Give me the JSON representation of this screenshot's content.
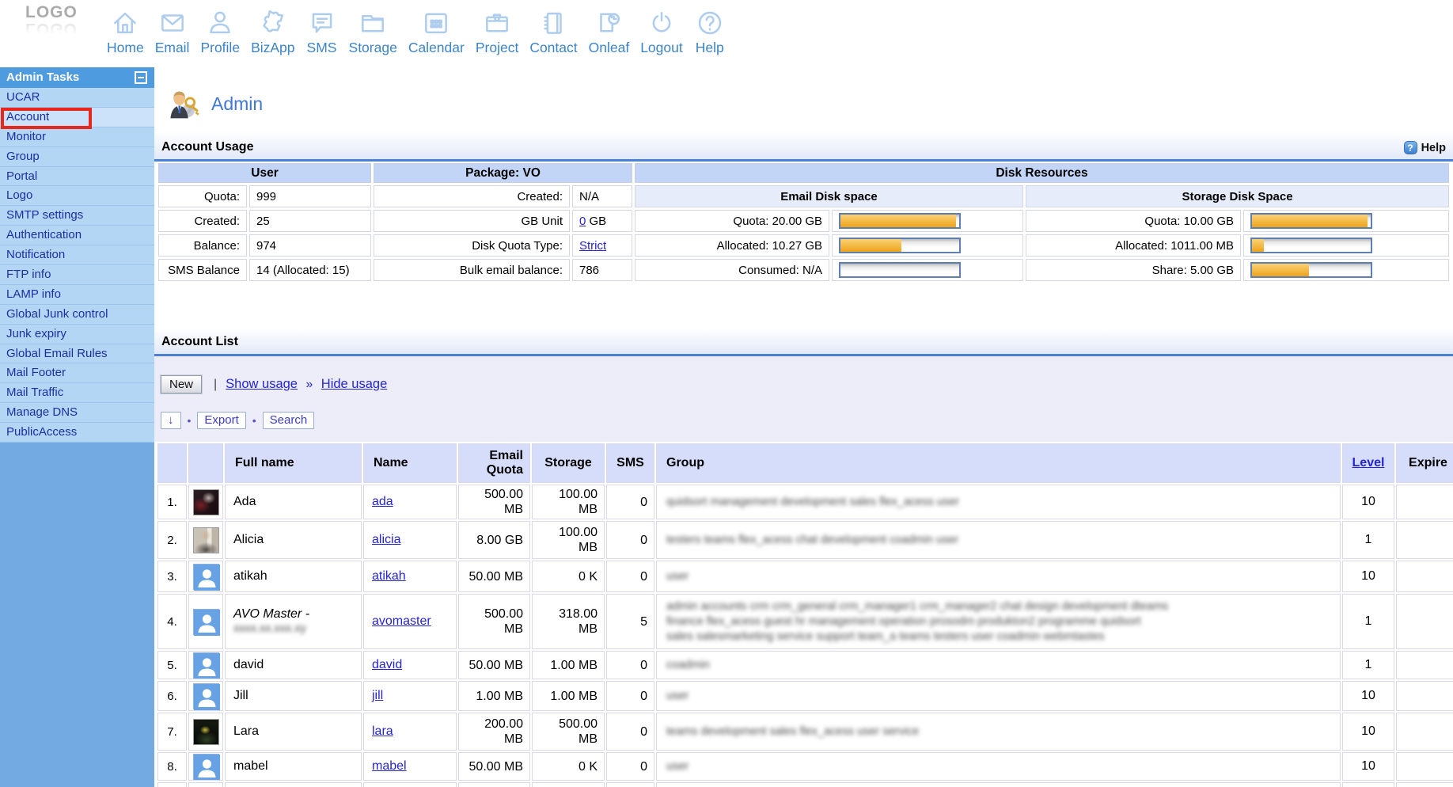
{
  "toolbar": {
    "logo": "LOGO",
    "items": [
      {
        "label": "Home",
        "icon": "home"
      },
      {
        "label": "Email",
        "icon": "email"
      },
      {
        "label": "Profile",
        "icon": "profile"
      },
      {
        "label": "BizApp",
        "icon": "bizapp"
      },
      {
        "label": "SMS",
        "icon": "sms"
      },
      {
        "label": "Storage",
        "icon": "storage"
      },
      {
        "label": "Calendar",
        "icon": "calendar"
      },
      {
        "label": "Project",
        "icon": "project"
      },
      {
        "label": "Contact",
        "icon": "contact"
      },
      {
        "label": "Onleaf",
        "icon": "onleaf"
      },
      {
        "label": "Logout",
        "icon": "logout"
      },
      {
        "label": "Help",
        "icon": "help"
      }
    ]
  },
  "sidebar": {
    "title": "Admin Tasks",
    "selected": "Account",
    "items": [
      "UCAR",
      "Account",
      "Monitor",
      "Group",
      "Portal",
      "Logo",
      "SMTP settings",
      "Authentication",
      "Notification",
      "FTP info",
      "LAMP info",
      "Global Junk control",
      "Junk expiry",
      "Global Email Rules",
      "Mail Footer",
      "Mail Traffic",
      "Manage DNS",
      "PublicAccess"
    ]
  },
  "page": {
    "title": "Admin"
  },
  "account_usage": {
    "section_title": "Account Usage",
    "help_label": "Help",
    "user": {
      "header": "User",
      "rows": [
        {
          "label": "Quota:",
          "value": "999"
        },
        {
          "label": "Created:",
          "value": "25"
        },
        {
          "label": "Balance:",
          "value": "974"
        },
        {
          "label": "SMS Balance",
          "value": "14 (Allocated: 15)"
        }
      ]
    },
    "package": {
      "header": "Package: VO",
      "rows": [
        {
          "label": "Created:",
          "value": "N/A"
        },
        {
          "label": "GB Unit",
          "value_link": "0",
          "value_after": " GB"
        },
        {
          "label": "Disk Quota Type:",
          "value_link": "Strict",
          "value_after": ""
        },
        {
          "label": "Bulk email balance:",
          "value": "786"
        }
      ]
    },
    "disk": {
      "header": "Disk Resources",
      "email": {
        "header": "Email Disk space",
        "rows": [
          {
            "label": "Quota: 20.00 GB",
            "percent": 97
          },
          {
            "label": "Allocated: 10.27 GB",
            "percent": 51
          },
          {
            "label": "Consumed: N/A",
            "percent": 0
          }
        ]
      },
      "storage": {
        "header": "Storage Disk Space",
        "rows": [
          {
            "label": "Quota: 10.00 GB",
            "percent": 97
          },
          {
            "label": "Allocated: 1011.00 MB",
            "percent": 10
          },
          {
            "label": "Share: 5.00 GB",
            "percent": 48
          }
        ]
      }
    }
  },
  "account_list": {
    "section_title": "Account List",
    "controls": {
      "new_label": "New",
      "show_usage": "Show usage",
      "hide_usage": "Hide usage",
      "sort_icon": "↓",
      "export_label": "Export",
      "search_label": "Search"
    },
    "columns": [
      "",
      "",
      "Full name",
      "Name",
      "Email\nQuota",
      "Storage",
      "SMS",
      "Group",
      "Level",
      "Expire"
    ],
    "rows": [
      {
        "num": "1.",
        "avatar": "photo-ada",
        "full_name": "Ada",
        "name": "ada",
        "email_quota": "500.00\nMB",
        "storage": "100.00\nMB",
        "sms": "0",
        "level": "10",
        "expire": "",
        "group_redacted": [
          "quidsort management development sales flex_acess user"
        ]
      },
      {
        "num": "2.",
        "avatar": "photo-alicia",
        "full_name": "Alicia",
        "name": "alicia",
        "email_quota": "8.00 GB",
        "storage": "100.00\nMB",
        "sms": "0",
        "level": "1",
        "expire": "",
        "group_redacted": [
          "testers teams flex_acess chat development coadmin user"
        ]
      },
      {
        "num": "3.",
        "avatar": "default",
        "full_name": "atikah",
        "name": "atikah",
        "email_quota": "50.00 MB",
        "storage": "0 K",
        "sms": "0",
        "level": "10",
        "expire": "",
        "group_redacted": [
          "user"
        ]
      },
      {
        "num": "4.",
        "avatar": "default",
        "full_name": "AVO Master -",
        "full_name_redacted": "xxxx.xx.xxx.xy",
        "name": "avomaster",
        "email_quota": "500.00\nMB",
        "storage": "318.00\nMB",
        "sms": "5",
        "level": "1",
        "expire": "",
        "group_redacted": [
          "admin accounts crm crm_general crm_manager1 crm_manager2 chat design development dteams",
          "finance flex_acess guest hr management operation prosodm produkton2 programme quidsort",
          "sales salesmarketing service support team_a teams testers user coadmin webmtastes"
        ]
      },
      {
        "num": "5.",
        "avatar": "default",
        "full_name": "david",
        "name": "david",
        "email_quota": "50.00 MB",
        "storage": "1.00 MB",
        "sms": "0",
        "level": "1",
        "expire": "",
        "group_redacted": [
          "coadmin"
        ]
      },
      {
        "num": "6.",
        "avatar": "default",
        "full_name": "Jill",
        "name": "jill",
        "email_quota": "1.00 MB",
        "storage": "1.00 MB",
        "sms": "0",
        "level": "10",
        "expire": "",
        "group_redacted": [
          "user"
        ]
      },
      {
        "num": "7.",
        "avatar": "photo-lara",
        "full_name": "Lara",
        "name": "lara",
        "email_quota": "200.00\nMB",
        "storage": "500.00\nMB",
        "sms": "0",
        "level": "10",
        "expire": "",
        "group_redacted": [
          "teams development sales flex_acess user service"
        ]
      },
      {
        "num": "8.",
        "avatar": "default",
        "full_name": "mabel",
        "name": "mabel",
        "email_quota": "50.00 MB",
        "storage": "0 K",
        "sms": "0",
        "level": "10",
        "expire": "",
        "group_redacted": [
          "user"
        ]
      },
      {
        "num": "",
        "avatar": "none",
        "full_name": "",
        "name": "",
        "email_quota": "",
        "storage": "",
        "sms": "",
        "level": "",
        "expire": "",
        "group_redacted": []
      }
    ]
  }
}
